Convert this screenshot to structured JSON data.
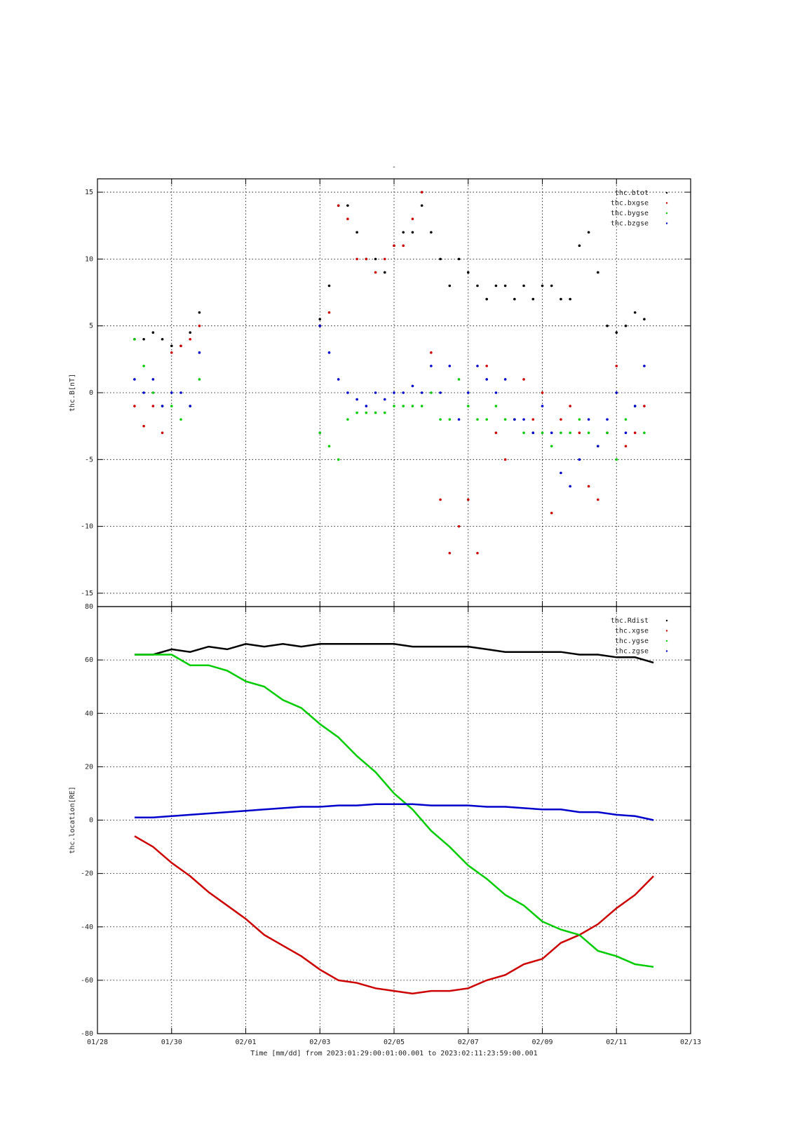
{
  "chart_data": [
    {
      "type": "scatter",
      "title": "-",
      "ylabel": "thc.B[nT]",
      "xlim": [
        "2023-01-28T00:00",
        "2023-02-13T00:00"
      ],
      "xticks": [
        {
          "value": "2023-01-28T00:00",
          "label": "01/28"
        },
        {
          "value": "2023-01-30T00:00",
          "label": "01/30"
        },
        {
          "value": "2023-02-01T00:00",
          "label": "02/01"
        },
        {
          "value": "2023-02-03T00:00",
          "label": "02/03"
        },
        {
          "value": "2023-02-05T00:00",
          "label": "02/05"
        },
        {
          "value": "2023-02-07T00:00",
          "label": "02/07"
        },
        {
          "value": "2023-02-09T00:00",
          "label": "02/09"
        },
        {
          "value": "2023-02-11T00:00",
          "label": "02/11"
        },
        {
          "value": "2023-02-13T00:00",
          "label": "02/13"
        }
      ],
      "ylim": [
        -16,
        16
      ],
      "yticks": [
        -15,
        -10,
        -5,
        0,
        5,
        10,
        15
      ],
      "grid": true,
      "legend": "upper right",
      "x": [
        "2023-01-29T00:00",
        "2023-01-29T06:00",
        "2023-01-29T12:00",
        "2023-01-29T18:00",
        "2023-01-30T00:00",
        "2023-01-30T06:00",
        "2023-01-30T12:00",
        "2023-01-30T18:00",
        "2023-01-31T12:00",
        "2023-02-03T00:00",
        "2023-02-03T06:00",
        "2023-02-03T12:00",
        "2023-02-03T18:00",
        "2023-02-04T00:00",
        "2023-02-04T06:00",
        "2023-02-04T12:00",
        "2023-02-04T18:00",
        "2023-02-05T00:00",
        "2023-02-05T06:00",
        "2023-02-05T12:00",
        "2023-02-05T18:00",
        "2023-02-06T00:00",
        "2023-02-06T06:00",
        "2023-02-06T12:00",
        "2023-02-06T18:00",
        "2023-02-07T00:00",
        "2023-02-07T06:00",
        "2023-02-07T12:00",
        "2023-02-07T18:00",
        "2023-02-08T00:00",
        "2023-02-08T06:00",
        "2023-02-08T12:00",
        "2023-02-08T18:00",
        "2023-02-09T00:00",
        "2023-02-09T06:00",
        "2023-02-09T12:00",
        "2023-02-09T18:00",
        "2023-02-10T00:00",
        "2023-02-10T06:00",
        "2023-02-10T12:00",
        "2023-02-10T18:00",
        "2023-02-11T00:00",
        "2023-02-11T06:00",
        "2023-02-11T12:00",
        "2023-02-11T18:00"
      ],
      "series": [
        {
          "name": "thc.btot",
          "color": "#000000",
          "values": [
            4,
            4,
            4.5,
            4,
            3.5,
            3.5,
            4.5,
            6,
            null,
            5.5,
            8,
            14,
            14,
            12,
            10,
            10,
            9,
            11,
            12,
            12,
            14,
            12,
            10,
            8,
            10,
            9,
            8,
            7,
            8,
            8,
            7,
            8,
            7,
            8,
            8,
            7,
            7,
            11,
            12,
            9,
            5,
            4.5,
            5,
            6,
            5.5
          ]
        },
        {
          "name": "thc.bxgse",
          "color": "#cc0000",
          "values": [
            -1,
            -2.5,
            -1,
            -3,
            3,
            3.5,
            4,
            5,
            null,
            5,
            6,
            14,
            13,
            10,
            10,
            9,
            10,
            11,
            11,
            13,
            15,
            3,
            -8,
            -12,
            -10,
            -8,
            -12,
            2,
            -3,
            -5,
            -2,
            1,
            -2,
            0,
            -9,
            -2,
            -1,
            -3,
            -7,
            -8,
            -3,
            2,
            -4,
            -3,
            -1
          ]
        },
        {
          "name": "thc.bygse",
          "color": "#00cc00",
          "values": [
            4,
            2,
            0,
            -1,
            -1,
            -2,
            -1,
            1,
            null,
            -3,
            -4,
            -5,
            -2,
            -1.5,
            -1.5,
            -1.5,
            -1.5,
            -1,
            -1,
            -1,
            -1,
            0,
            -2,
            -2,
            1,
            -1,
            -2,
            -2,
            -1,
            -2,
            -2,
            -3,
            -3,
            -3,
            -4,
            -3,
            -3,
            -2,
            -3,
            -4,
            -3,
            -5,
            -2,
            -1,
            -3
          ]
        },
        {
          "name": "thc.bzgse",
          "color": "#0000cc",
          "values": [
            1,
            0,
            1,
            -1,
            0,
            0,
            -1,
            3,
            null,
            5,
            3,
            1,
            0,
            -0.5,
            -1,
            0,
            -0.5,
            0,
            0,
            0.5,
            0,
            2,
            0,
            2,
            -2,
            0,
            2,
            1,
            0,
            1,
            -2,
            -2,
            -3,
            -1,
            -3,
            -6,
            -7,
            -5,
            -2,
            -4,
            -2,
            0,
            -3,
            -1,
            2
          ]
        }
      ]
    },
    {
      "type": "line",
      "ylabel": "thc.location[RE]",
      "xlabel": "Time [mm/dd]  from 2023:01:29:00:01:00.001  to  2023:02:11:23:59:00.001",
      "xlim": [
        "2023-01-28T00:00",
        "2023-02-13T00:00"
      ],
      "xticks": [
        {
          "value": "2023-01-28T00:00",
          "label": "01/28"
        },
        {
          "value": "2023-01-30T00:00",
          "label": "01/30"
        },
        {
          "value": "2023-02-01T00:00",
          "label": "02/01"
        },
        {
          "value": "2023-02-03T00:00",
          "label": "02/03"
        },
        {
          "value": "2023-02-05T00:00",
          "label": "02/05"
        },
        {
          "value": "2023-02-07T00:00",
          "label": "02/07"
        },
        {
          "value": "2023-02-09T00:00",
          "label": "02/09"
        },
        {
          "value": "2023-02-11T00:00",
          "label": "02/11"
        },
        {
          "value": "2023-02-13T00:00",
          "label": "02/13"
        }
      ],
      "ylim": [
        -80,
        80
      ],
      "yticks": [
        -80,
        -60,
        -40,
        -20,
        0,
        20,
        40,
        60,
        80
      ],
      "grid": true,
      "legend": "upper right",
      "x": [
        "2023-01-29T00:00",
        "2023-01-29T12:00",
        "2023-01-30T00:00",
        "2023-01-30T12:00",
        "2023-01-31T00:00",
        "2023-01-31T12:00",
        "2023-02-01T00:00",
        "2023-02-01T12:00",
        "2023-02-02T00:00",
        "2023-02-02T12:00",
        "2023-02-03T00:00",
        "2023-02-03T12:00",
        "2023-02-04T00:00",
        "2023-02-04T12:00",
        "2023-02-05T00:00",
        "2023-02-05T12:00",
        "2023-02-06T00:00",
        "2023-02-06T12:00",
        "2023-02-07T00:00",
        "2023-02-07T12:00",
        "2023-02-08T00:00",
        "2023-02-08T12:00",
        "2023-02-09T00:00",
        "2023-02-09T12:00",
        "2023-02-10T00:00",
        "2023-02-10T12:00",
        "2023-02-11T00:00",
        "2023-02-11T12:00",
        "2023-02-12T00:00"
      ],
      "series": [
        {
          "name": "thc.Rdist",
          "color": "#000000",
          "values": [
            62,
            62,
            64,
            63,
            65,
            64,
            66,
            65,
            66,
            65,
            66,
            66,
            66,
            66,
            66,
            65,
            65,
            65,
            65,
            64,
            63,
            63,
            63,
            63,
            62,
            62,
            61,
            61,
            59
          ]
        },
        {
          "name": "thc.xgse",
          "color": "#cc0000",
          "values": [
            -6,
            -10,
            -16,
            -21,
            -27,
            -32,
            -37,
            -43,
            -47,
            -51,
            -56,
            -60,
            -61,
            -63,
            -64,
            -65,
            -64,
            -64,
            -63,
            -60,
            -58,
            -54,
            -52,
            -46,
            -43,
            -39,
            -33,
            -28,
            -21
          ]
        },
        {
          "name": "thc.ygse",
          "color": "#00cc00",
          "values": [
            62,
            62,
            62,
            58,
            58,
            56,
            52,
            50,
            45,
            42,
            36,
            31,
            24,
            18,
            10,
            4,
            -4,
            -10,
            -17,
            -22,
            -28,
            -32,
            -38,
            -41,
            -43,
            -49,
            -51,
            -54,
            -55
          ]
        },
        {
          "name": "thc.zgse",
          "color": "#0000cc",
          "values": [
            1,
            1,
            1.5,
            2,
            2.5,
            3,
            3.5,
            4,
            4.5,
            5,
            5,
            5.5,
            5.5,
            6,
            6,
            6,
            5.5,
            5.5,
            5.5,
            5,
            5,
            4.5,
            4,
            4,
            3,
            3,
            2,
            1.5,
            0
          ]
        }
      ]
    }
  ]
}
